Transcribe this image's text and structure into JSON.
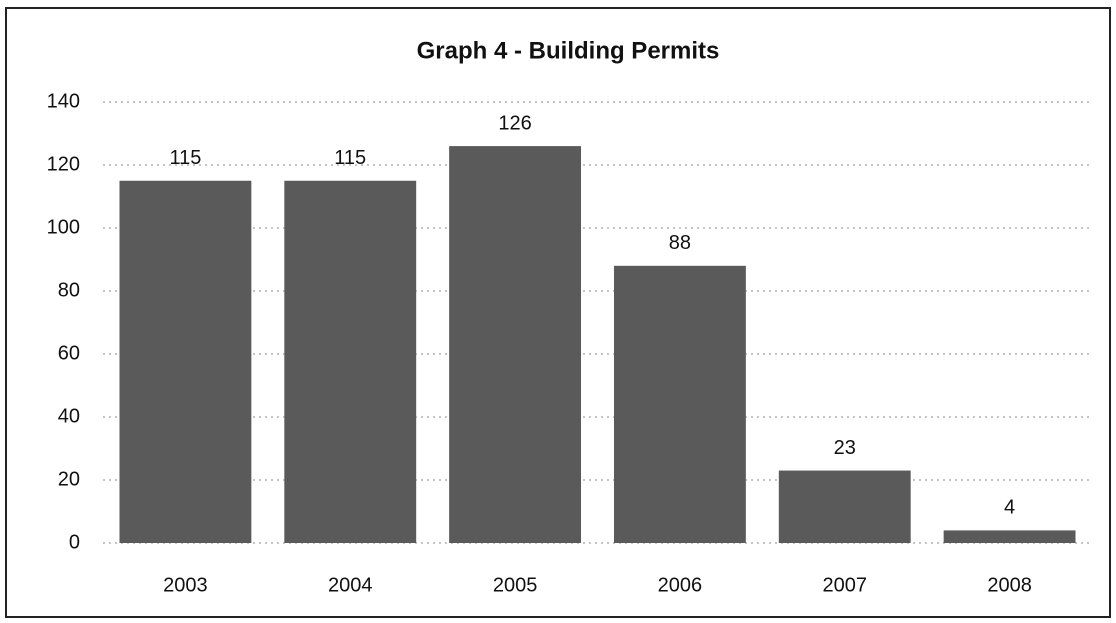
{
  "chart_data": {
    "type": "bar",
    "title": "Graph 4 - Building Permits",
    "categories": [
      "2003",
      "2004",
      "2005",
      "2006",
      "2007",
      "2008"
    ],
    "values": [
      115,
      115,
      126,
      88,
      23,
      4
    ],
    "color": "#5a5a5a",
    "ylim": [
      0,
      140
    ],
    "yticks": [
      0,
      20,
      40,
      60,
      80,
      100,
      120,
      140
    ],
    "grid": true
  }
}
